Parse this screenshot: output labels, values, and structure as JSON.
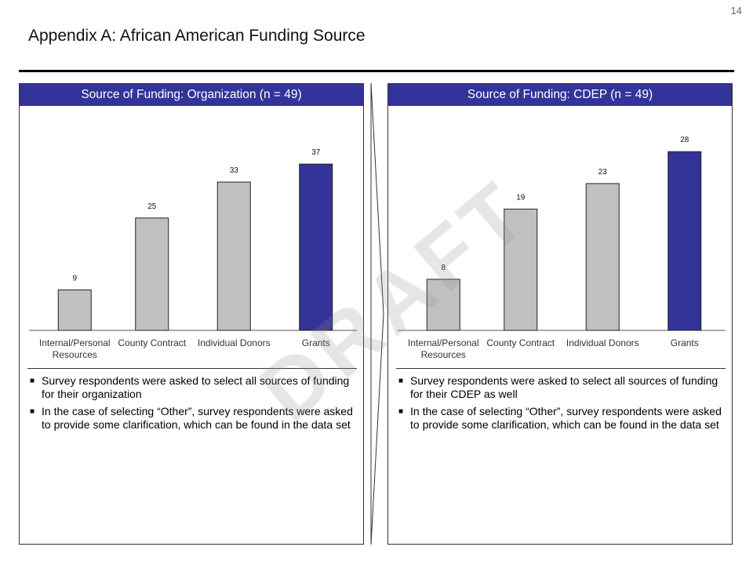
{
  "page_number": "14",
  "title": "Appendix A: African American Funding Source",
  "watermark": "DRAFT",
  "colors": {
    "header": "#333399",
    "bar_gray": "#c0c0c0",
    "bar_highlight": "#333399"
  },
  "panels": [
    {
      "header": "Source of Funding: Organization (n = 49)",
      "bullets": [
        "Survey respondents were asked to select all sources of funding for their organization",
        "In the case of selecting “Other”, survey respondents were asked to provide some clarification, which can be found in the data set"
      ]
    },
    {
      "header": "Source of Funding: CDEP (n = 49)",
      "bullets": [
        "Survey respondents were asked to select all sources of funding for their CDEP as well",
        "In the case of selecting “Other”, survey respondents were asked to provide some clarification, which can be found in the data set"
      ]
    }
  ],
  "chart_data": [
    {
      "type": "bar",
      "title": "Source of Funding: Organization (n = 49)",
      "categories": [
        "Internal/Personal Resources",
        "County Contract",
        "Individual Donors",
        "Grants"
      ],
      "category_lines": [
        [
          "Internal/Personal",
          "Resources"
        ],
        [
          "County Contract"
        ],
        [
          "Individual Donors"
        ],
        [
          "Grants"
        ]
      ],
      "values": [
        9,
        25,
        33,
        37
      ],
      "highlight_index": 3,
      "ylim": [
        0,
        40
      ],
      "grid": false,
      "legend": "none"
    },
    {
      "type": "bar",
      "title": "Source of Funding: CDEP (n = 49)",
      "categories": [
        "Internal/Personal Resources",
        "County Contract",
        "Individual Donors",
        "Grants"
      ],
      "category_lines": [
        [
          "Internal/Personal",
          "Resources"
        ],
        [
          "County Contract"
        ],
        [
          "Individual Donors"
        ],
        [
          "Grants"
        ]
      ],
      "values": [
        8,
        19,
        23,
        28
      ],
      "highlight_index": 3,
      "ylim": [
        0,
        30
      ],
      "grid": false,
      "legend": "none"
    }
  ]
}
